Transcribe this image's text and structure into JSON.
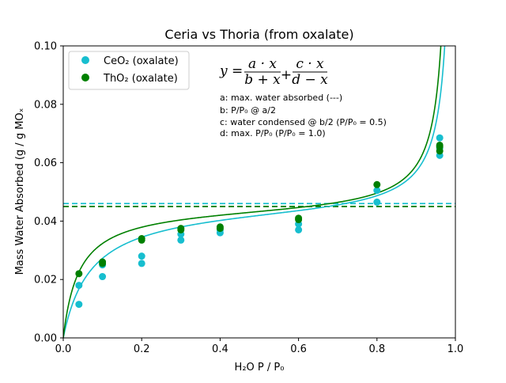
{
  "chart_data": {
    "type": "scatter",
    "title": "Ceria vs Thoria (from oxalate)",
    "xlabel": "H₂O P / P₀",
    "ylabel": "Mass Water Absorbed (g / g MOₓ",
    "xlim": [
      0.0,
      1.0
    ],
    "ylim": [
      0.0,
      0.1
    ],
    "x_ticks": [
      "0.0",
      "0.2",
      "0.4",
      "0.6",
      "0.8",
      "1.0"
    ],
    "y_ticks": [
      "0.00",
      "0.02",
      "0.04",
      "0.06",
      "0.08",
      "0.10"
    ],
    "grid": false,
    "legend_position": "top-left",
    "series": [
      {
        "name": "CeO₂ (oxalate)",
        "color": "#17becf",
        "points": [
          [
            0.04,
            0.0115
          ],
          [
            0.04,
            0.018
          ],
          [
            0.1,
            0.021
          ],
          [
            0.1,
            0.025
          ],
          [
            0.2,
            0.0255
          ],
          [
            0.2,
            0.028
          ],
          [
            0.3,
            0.0335
          ],
          [
            0.3,
            0.0355
          ],
          [
            0.4,
            0.036
          ],
          [
            0.4,
            0.037
          ],
          [
            0.6,
            0.037
          ],
          [
            0.6,
            0.039
          ],
          [
            0.8,
            0.0465
          ],
          [
            0.8,
            0.0505
          ],
          [
            0.96,
            0.0625
          ],
          [
            0.96,
            0.065
          ],
          [
            0.96,
            0.0685
          ]
        ],
        "fit": {
          "a": 0.046,
          "b": 0.07,
          "c": 0.0016,
          "d": 1.0
        }
      },
      {
        "name": "ThO₂ (oxalate)",
        "color": "#008000",
        "points": [
          [
            0.04,
            0.022
          ],
          [
            0.1,
            0.0255
          ],
          [
            0.1,
            0.026
          ],
          [
            0.2,
            0.0335
          ],
          [
            0.2,
            0.034
          ],
          [
            0.3,
            0.037
          ],
          [
            0.3,
            0.0375
          ],
          [
            0.4,
            0.0375
          ],
          [
            0.4,
            0.038
          ],
          [
            0.6,
            0.0405
          ],
          [
            0.6,
            0.041
          ],
          [
            0.8,
            0.0525
          ],
          [
            0.96,
            0.064
          ],
          [
            0.96,
            0.0655
          ],
          [
            0.96,
            0.066
          ]
        ],
        "fit": {
          "a": 0.045,
          "b": 0.04,
          "c": 0.0016,
          "d": 0.99
        }
      }
    ],
    "equation": {
      "lhs": "y =",
      "t1_num": "a · x",
      "t1_den": "b + x",
      "plus": "+",
      "t2_num": "c · x",
      "t2_den": "d − x"
    },
    "annotations": [
      "a: max. water absorbed (---)",
      "b: P/P₀ @ a/2",
      "c: water condensed @ b/2 (P/P₀ = 0.5)",
      "d: max. P/P₀ (P/P₀ = 1.0)"
    ]
  }
}
